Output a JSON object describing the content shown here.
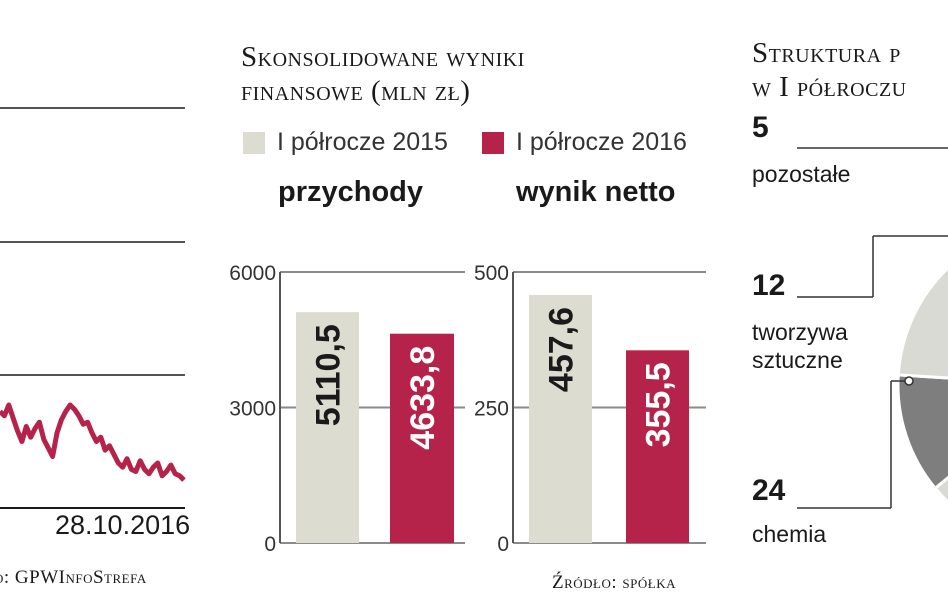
{
  "left_panel": {
    "date_label": "28.10.2016",
    "source": "o: GPWInfoStrefa"
  },
  "middle_panel": {
    "title_line1": "Skonsolidowane wyniki",
    "title_line2": "finansowe (mln zł)",
    "source": "Źródło: spółka"
  },
  "right_panel": {
    "title_line1": "Struktura p",
    "title_line2": "w I półroczu",
    "segments": [
      {
        "value": "5",
        "label_lines": [
          "pozostałe"
        ]
      },
      {
        "value": "12",
        "label_lines": [
          "tworzywa",
          "sztuczne"
        ]
      },
      {
        "value": "24",
        "label_lines": [
          "chemia"
        ]
      }
    ]
  },
  "colors": {
    "series_2015": "#dcdcd0",
    "series_2016": "#b5234b",
    "line": "#b5234b",
    "pie_light": "#dadad4",
    "pie_dark": "#7e7e7e"
  },
  "chart_data": [
    {
      "type": "line",
      "title": "",
      "x_end_label": "28.10.2016",
      "series": [
        {
          "values": [
            3.15,
            3.05,
            3.3,
            3.0,
            2.7,
            2.45,
            2.8,
            2.55,
            2.75,
            2.9,
            2.5,
            2.3,
            2.1,
            2.65,
            2.95,
            3.15,
            3.3,
            3.2,
            3.05,
            2.85,
            2.9,
            2.65,
            2.45,
            2.55,
            2.25,
            2.35,
            2.15,
            1.95,
            1.85,
            2.05,
            1.8,
            1.75,
            2.0,
            1.8,
            1.7,
            1.85,
            1.95,
            1.65,
            1.75,
            1.9,
            1.7,
            1.65,
            1.55
          ]
        }
      ],
      "gridlines": 4,
      "grid": true
    },
    {
      "type": "bar",
      "title": "przychody",
      "categories": [
        "I półrocze 2015",
        "I półrocze 2016"
      ],
      "values": [
        5110.5,
        4633.8
      ],
      "value_labels": [
        "5110,5",
        "4633,8"
      ],
      "ylim": [
        0,
        6000
      ],
      "yticks": [
        0,
        3000,
        6000
      ],
      "ytick_labels": [
        "0",
        "3000",
        "6000"
      ],
      "legend": [
        "I półrocze 2015",
        "I półrocze 2016"
      ]
    },
    {
      "type": "bar",
      "title": "wynik netto",
      "categories": [
        "I półrocze 2015",
        "I półrocze 2016"
      ],
      "values": [
        457.6,
        355.5
      ],
      "value_labels": [
        "457,6",
        "355,5"
      ],
      "ylim": [
        0,
        500
      ],
      "yticks": [
        0,
        250,
        500
      ],
      "ytick_labels": [
        "0",
        "250",
        "500"
      ]
    },
    {
      "type": "pie",
      "title": "Struktura p w I półroczu",
      "values": [
        5,
        12,
        24
      ],
      "labels": [
        "pozostałe",
        "tworzywa sztuczne",
        "chemia"
      ]
    }
  ]
}
